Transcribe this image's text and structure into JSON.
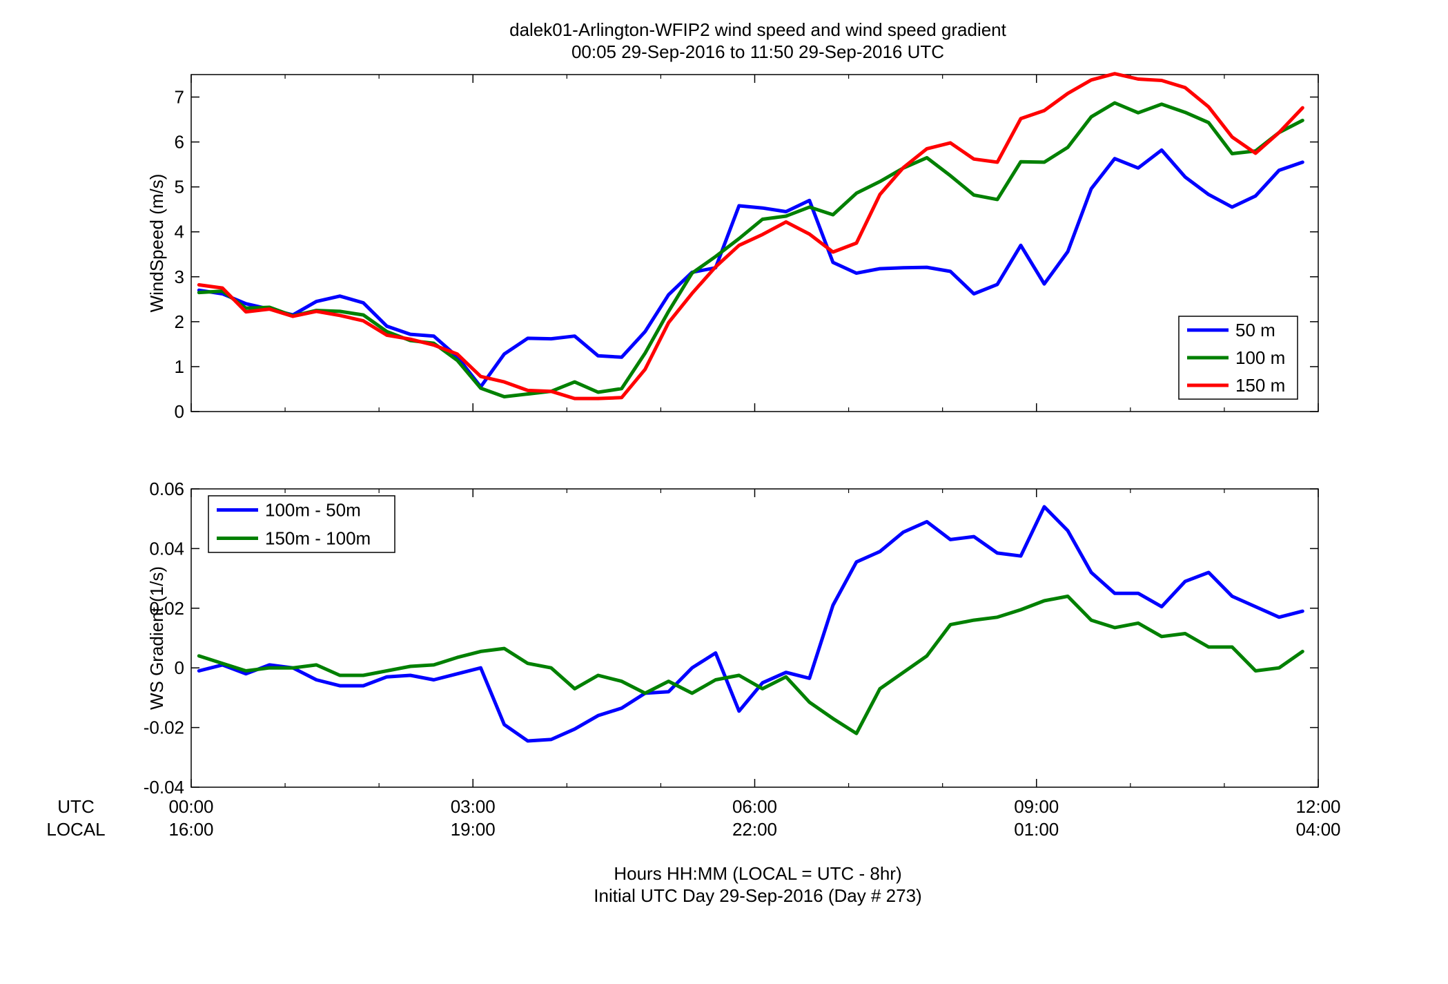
{
  "figure": {
    "title_line1": "dalek01-Arlington-WFIP2  wind speed and wind speed gradient",
    "title_line2": "00:05 29-Sep-2016 to 11:50 29-Sep-2016  UTC",
    "xlabel_line1": "Hours HH:MM  (LOCAL = UTC - 8hr)",
    "xlabel_line2": "Initial UTC Day 29-Sep-2016 (Day # 273)",
    "utc_row_label": "UTC",
    "local_row_label": "LOCAL",
    "utc_ticks": [
      "00:00",
      "03:00",
      "06:00",
      "09:00",
      "12:00"
    ],
    "local_ticks": [
      "16:00",
      "19:00",
      "22:00",
      "01:00",
      "04:00"
    ]
  },
  "chart_data": [
    {
      "type": "line",
      "ylabel": "WindSpeed (m/s)",
      "xlim": [
        0,
        12
      ],
      "ylim": [
        0,
        7.5
      ],
      "yticks": [
        0,
        1,
        2,
        3,
        4,
        5,
        6,
        7
      ],
      "legend_position": "bottom-right",
      "x": [
        0.083,
        0.333,
        0.583,
        0.833,
        1.083,
        1.333,
        1.583,
        1.833,
        2.083,
        2.333,
        2.583,
        2.833,
        3.083,
        3.333,
        3.583,
        3.833,
        4.083,
        4.333,
        4.583,
        4.833,
        5.083,
        5.333,
        5.583,
        5.833,
        6.083,
        6.333,
        6.583,
        6.833,
        7.083,
        7.333,
        7.583,
        7.833,
        8.083,
        8.333,
        8.583,
        8.833,
        9.083,
        9.333,
        9.583,
        9.833,
        10.083,
        10.333,
        10.583,
        10.833,
        11.083,
        11.333,
        11.583,
        11.833
      ],
      "series": [
        {
          "name": "50 m",
          "color": "#0000ff",
          "values": [
            2.7,
            2.62,
            2.4,
            2.28,
            2.15,
            2.45,
            2.57,
            2.42,
            1.9,
            1.72,
            1.68,
            1.22,
            0.55,
            1.28,
            1.63,
            1.62,
            1.68,
            1.24,
            1.21,
            1.78,
            2.6,
            3.1,
            3.2,
            4.58,
            4.53,
            4.45,
            4.7,
            3.32,
            3.08,
            3.18,
            3.2,
            3.21,
            3.12,
            2.62,
            2.83,
            3.7,
            2.84,
            3.56,
            4.96,
            5.63,
            5.42,
            5.82,
            5.22,
            4.83,
            4.55,
            4.8,
            5.37,
            5.55
          ]
        },
        {
          "name": "100 m",
          "color": "#008000",
          "values": [
            2.65,
            2.68,
            2.3,
            2.32,
            2.13,
            2.25,
            2.23,
            2.15,
            1.78,
            1.58,
            1.52,
            1.14,
            0.52,
            0.33,
            0.39,
            0.45,
            0.66,
            0.43,
            0.51,
            1.3,
            2.23,
            3.08,
            3.45,
            3.85,
            4.28,
            4.35,
            4.55,
            4.38,
            4.86,
            5.12,
            5.42,
            5.65,
            5.25,
            4.82,
            4.72,
            5.56,
            5.55,
            5.88,
            6.56,
            6.87,
            6.65,
            6.84,
            6.66,
            6.43,
            5.74,
            5.8,
            6.21,
            6.48
          ]
        },
        {
          "name": "150 m",
          "color": "#ff0000",
          "values": [
            2.82,
            2.75,
            2.22,
            2.28,
            2.12,
            2.23,
            2.14,
            2.02,
            1.7,
            1.61,
            1.48,
            1.28,
            0.78,
            0.66,
            0.47,
            0.45,
            0.29,
            0.29,
            0.31,
            0.94,
            1.98,
            2.63,
            3.22,
            3.7,
            3.94,
            4.22,
            3.95,
            3.55,
            3.75,
            4.83,
            5.43,
            5.85,
            5.98,
            5.62,
            5.55,
            6.52,
            6.7,
            7.08,
            7.38,
            7.52,
            7.4,
            7.37,
            7.21,
            6.78,
            6.11,
            5.75,
            6.21,
            6.76
          ]
        }
      ]
    },
    {
      "type": "line",
      "ylabel": "WS Gradient (1/s)",
      "xlim": [
        0,
        12
      ],
      "ylim": [
        -0.04,
        0.06
      ],
      "yticks": [
        -0.04,
        -0.02,
        0,
        0.02,
        0.04,
        0.06
      ],
      "ytick_labels": [
        "-0.04",
        "-0.02",
        "0",
        "0.02",
        "0.04",
        "0.06"
      ],
      "legend_position": "top-left",
      "x": [
        0.083,
        0.333,
        0.583,
        0.833,
        1.083,
        1.333,
        1.583,
        1.833,
        2.083,
        2.333,
        2.583,
        2.833,
        3.083,
        3.333,
        3.583,
        3.833,
        4.083,
        4.333,
        4.583,
        4.833,
        5.083,
        5.333,
        5.583,
        5.833,
        6.083,
        6.333,
        6.583,
        6.833,
        7.083,
        7.333,
        7.583,
        7.833,
        8.083,
        8.333,
        8.583,
        8.833,
        9.083,
        9.333,
        9.583,
        9.833,
        10.083,
        10.333,
        10.583,
        10.833,
        11.083,
        11.333,
        11.583,
        11.833
      ],
      "series": [
        {
          "name": "100m - 50m",
          "color": "#0000ff",
          "values": [
            -0.001,
            0.001,
            -0.002,
            0.001,
            0.0,
            -0.004,
            -0.006,
            -0.006,
            -0.003,
            -0.0025,
            -0.004,
            -0.002,
            0.0,
            -0.019,
            -0.0245,
            -0.024,
            -0.0205,
            -0.016,
            -0.0135,
            -0.0085,
            -0.008,
            0.0,
            0.005,
            -0.0145,
            -0.005,
            -0.0015,
            -0.0035,
            0.021,
            0.0355,
            0.039,
            0.0455,
            0.049,
            0.043,
            0.044,
            0.0385,
            0.0375,
            0.054,
            0.046,
            0.032,
            0.025,
            0.025,
            0.0205,
            0.029,
            0.032,
            0.024,
            0.0205,
            0.017,
            0.019
          ]
        },
        {
          "name": "150m - 100m",
          "color": "#008000",
          "values": [
            0.004,
            0.0015,
            -0.001,
            0.0,
            0.0,
            0.001,
            -0.0025,
            -0.0025,
            -0.001,
            0.0005,
            0.001,
            0.0035,
            0.0055,
            0.0065,
            0.0015,
            0.0,
            -0.007,
            -0.0025,
            -0.0045,
            -0.0085,
            -0.0045,
            -0.0085,
            -0.004,
            -0.0025,
            -0.007,
            -0.003,
            -0.0115,
            -0.017,
            -0.022,
            -0.007,
            -0.0015,
            0.004,
            0.0145,
            0.016,
            0.017,
            0.0195,
            0.0225,
            0.024,
            0.016,
            0.0135,
            0.015,
            0.0105,
            0.0115,
            0.007,
            0.007,
            -0.001,
            0.0,
            0.0055
          ]
        }
      ]
    }
  ]
}
